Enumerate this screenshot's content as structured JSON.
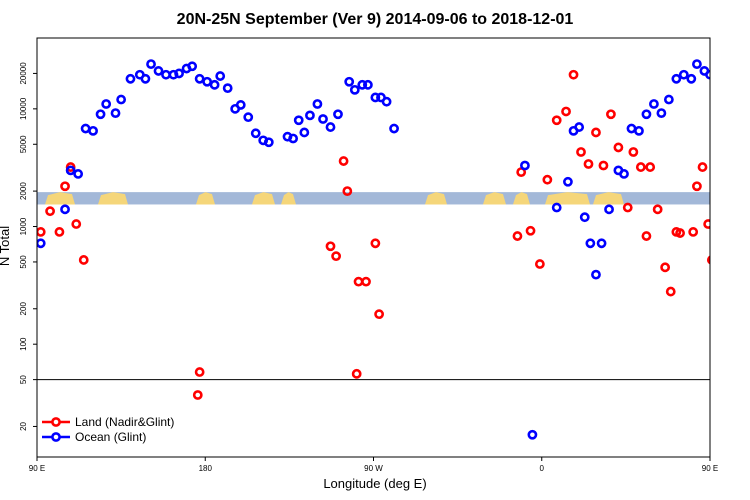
{
  "chart_data": {
    "type": "scatter",
    "title": "20N-25N September (Ver 9)   2014-09-06 to 2018-12-01",
    "xlabel": "Longitude (deg E)",
    "ylabel": "N Total",
    "xlim": [
      90,
      450
    ],
    "ylim_log": [
      11,
      40000
    ],
    "x_ticks": [
      {
        "value": 90,
        "label": "90 E"
      },
      {
        "value": 180,
        "label": "180"
      },
      {
        "value": 270,
        "label": "90 W"
      },
      {
        "value": 360,
        "label": "0"
      },
      {
        "value": 450,
        "label": "90 E"
      },
      {
        "value": 540,
        "label": "180"
      }
    ],
    "y_ticks": [
      {
        "value": 20,
        "label": "20"
      },
      {
        "value": 50,
        "label": "50"
      },
      {
        "value": 100,
        "label": "100"
      },
      {
        "value": 200,
        "label": "200"
      },
      {
        "value": 500,
        "label": "500"
      },
      {
        "value": 1000,
        "label": "1000"
      },
      {
        "value": 2000,
        "label": "2000"
      },
      {
        "value": 5000,
        "label": "5000"
      },
      {
        "value": 10000,
        "label": "10000"
      },
      {
        "value": 20000,
        "label": "20000"
      }
    ],
    "reference_line": 50,
    "map_strip": {
      "ocean": "#a3b8d8",
      "land": "#f5d67a",
      "y_range": [
        1540,
        1960
      ]
    },
    "legend_position": "bottom-left",
    "series": [
      {
        "name": "Land (Nadir&Glint)",
        "color": "#ff0000",
        "points": [
          [
            92,
            900
          ],
          [
            97,
            1350
          ],
          [
            102,
            900
          ],
          [
            105,
            2200
          ],
          [
            108,
            3200
          ],
          [
            111,
            1050
          ],
          [
            115,
            520
          ],
          [
            176,
            37
          ],
          [
            177,
            58
          ],
          [
            247,
            680
          ],
          [
            250,
            560
          ],
          [
            254,
            3600
          ],
          [
            256,
            2000
          ],
          [
            261,
            56
          ],
          [
            262,
            340
          ],
          [
            266,
            340
          ],
          [
            271,
            720
          ],
          [
            273,
            180
          ],
          [
            347,
            830
          ],
          [
            349,
            2900
          ],
          [
            354,
            920
          ],
          [
            359,
            480
          ],
          [
            363,
            2500
          ],
          [
            368,
            8000
          ],
          [
            373,
            9500
          ],
          [
            377,
            19500
          ],
          [
            381,
            4300
          ],
          [
            385,
            3400
          ],
          [
            389,
            6300
          ],
          [
            393,
            3300
          ],
          [
            397,
            9000
          ],
          [
            401,
            4700
          ],
          [
            406,
            1450
          ],
          [
            409,
            4300
          ],
          [
            413,
            3200
          ],
          [
            416,
            830
          ],
          [
            418,
            3200
          ],
          [
            422,
            1400
          ],
          [
            426,
            450
          ],
          [
            429,
            280
          ],
          [
            432,
            900
          ],
          [
            434,
            880
          ],
          [
            441,
            900
          ],
          [
            443,
            2200
          ],
          [
            446,
            3200
          ],
          [
            449,
            1050
          ],
          [
            451,
            520
          ]
        ]
      },
      {
        "name": "Ocean (Glint)",
        "color": "#0000ff",
        "points": [
          [
            92,
            720
          ],
          [
            105,
            1400
          ],
          [
            108,
            3000
          ],
          [
            112,
            2800
          ],
          [
            116,
            6800
          ],
          [
            120,
            6500
          ],
          [
            124,
            9000
          ],
          [
            127,
            11000
          ],
          [
            132,
            9200
          ],
          [
            135,
            12000
          ],
          [
            140,
            18000
          ],
          [
            145,
            19500
          ],
          [
            148,
            18000
          ],
          [
            151,
            24000
          ],
          [
            155,
            21000
          ],
          [
            159,
            19500
          ],
          [
            163,
            19500
          ],
          [
            166,
            20000
          ],
          [
            170,
            22000
          ],
          [
            173,
            23000
          ],
          [
            177,
            18000
          ],
          [
            181,
            17000
          ],
          [
            185,
            16000
          ],
          [
            188,
            19000
          ],
          [
            192,
            15000
          ],
          [
            196,
            10000
          ],
          [
            199,
            10800
          ],
          [
            203,
            8500
          ],
          [
            207,
            6200
          ],
          [
            211,
            5400
          ],
          [
            214,
            5200
          ],
          [
            224,
            5800
          ],
          [
            227,
            5600
          ],
          [
            230,
            8000
          ],
          [
            233,
            6300
          ],
          [
            236,
            8800
          ],
          [
            240,
            11000
          ],
          [
            243,
            8200
          ],
          [
            247,
            7000
          ],
          [
            251,
            9000
          ],
          [
            257,
            17000
          ],
          [
            260,
            14500
          ],
          [
            264,
            16000
          ],
          [
            267,
            16000
          ],
          [
            271,
            12500
          ],
          [
            274,
            12500
          ],
          [
            277,
            11500
          ],
          [
            281,
            6800
          ],
          [
            351,
            3300
          ],
          [
            355,
            17
          ],
          [
            368,
            1450
          ],
          [
            374,
            2400
          ],
          [
            377,
            6500
          ],
          [
            380,
            7000
          ],
          [
            383,
            1200
          ],
          [
            386,
            720
          ],
          [
            389,
            390
          ],
          [
            392,
            720
          ],
          [
            396,
            1400
          ],
          [
            401,
            3000
          ],
          [
            404,
            2800
          ],
          [
            408,
            6800
          ],
          [
            412,
            6500
          ],
          [
            416,
            9000
          ],
          [
            420,
            11000
          ],
          [
            424,
            9200
          ],
          [
            428,
            12000
          ],
          [
            432,
            18000
          ],
          [
            436,
            19500
          ],
          [
            440,
            18000
          ],
          [
            443,
            24000
          ],
          [
            447,
            21000
          ],
          [
            450,
            19500
          ]
        ]
      }
    ]
  }
}
